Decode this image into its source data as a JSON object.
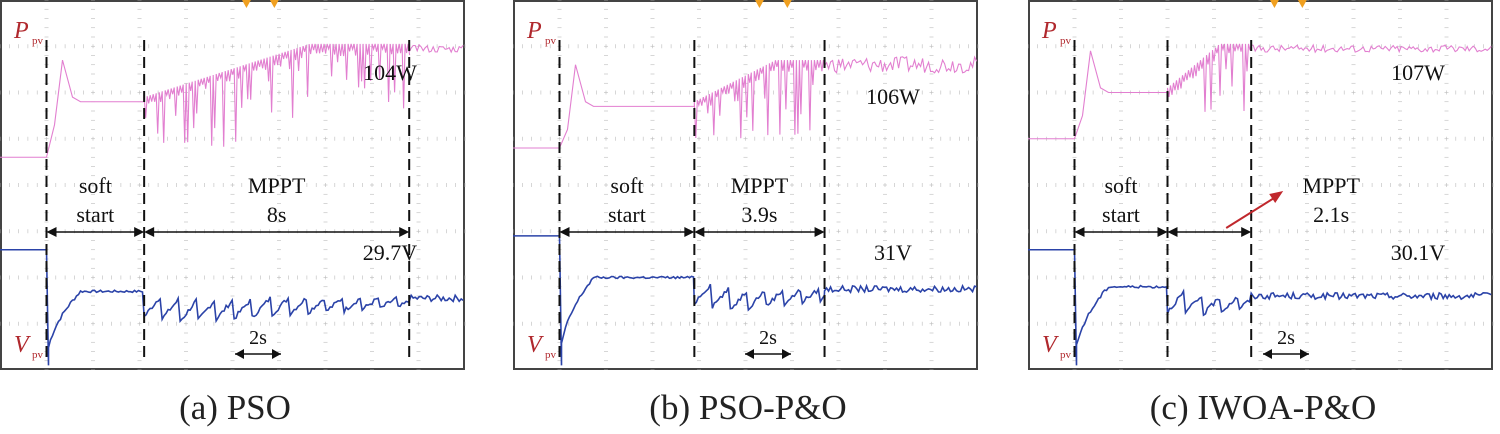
{
  "chart_data": [
    {
      "id": "pso",
      "type": "line",
      "caption": "(a) PSO",
      "power_label": {
        "main": "P",
        "sub": "pv"
      },
      "voltage_label": {
        "main": "V",
        "sub": "pv"
      },
      "power_value": "104W",
      "voltage_value": "29.7V",
      "soft_start_label": [
        "soft",
        "start"
      ],
      "mppt_label": "MPPT",
      "mppt_time": "8s",
      "scale_label": "2s",
      "marker_lines_s": [
        0,
        2.1,
        7.8
      ],
      "power_level_div": {
        "before": 4.6,
        "softstart": 5.8,
        "final": 6.95
      },
      "voltage_level_div": {
        "before": 2.6,
        "softstart": 1.7,
        "final": 1.55
      }
    },
    {
      "id": "pso-po",
      "type": "line",
      "caption": "(b) PSO-P&O",
      "power_label": {
        "main": "P",
        "sub": "pv"
      },
      "voltage_label": {
        "main": "V",
        "sub": "pv"
      },
      "power_value": "106W",
      "voltage_value": "31V",
      "soft_start_label": [
        "soft",
        "start"
      ],
      "mppt_label": "MPPT",
      "mppt_time": "3.9s",
      "scale_label": "2s",
      "marker_lines_s": [
        0,
        2.9,
        5.7
      ],
      "power_level_div": {
        "before": 4.8,
        "softstart": 5.7,
        "final": 6.6
      },
      "voltage_level_div": {
        "before": 2.9,
        "softstart": 2.0,
        "final": 1.75
      }
    },
    {
      "id": "iwoa-po",
      "type": "line",
      "caption": "(c) IWOA-P&O",
      "power_label": {
        "main": "P",
        "sub": "pv"
      },
      "voltage_label": {
        "main": "V",
        "sub": "pv"
      },
      "power_value": "107W",
      "voltage_value": "30.1V",
      "soft_start_label": [
        "soft",
        "start"
      ],
      "mppt_label": "MPPT",
      "mppt_time": "2.1s",
      "scale_label": "2s",
      "marker_lines_s": [
        0,
        2.0,
        3.8
      ],
      "power_level_div": {
        "before": 5.0,
        "softstart": 6.0,
        "final": 6.95
      },
      "voltage_level_div": {
        "before": 2.6,
        "softstart": 1.8,
        "final": 1.6
      }
    }
  ]
}
